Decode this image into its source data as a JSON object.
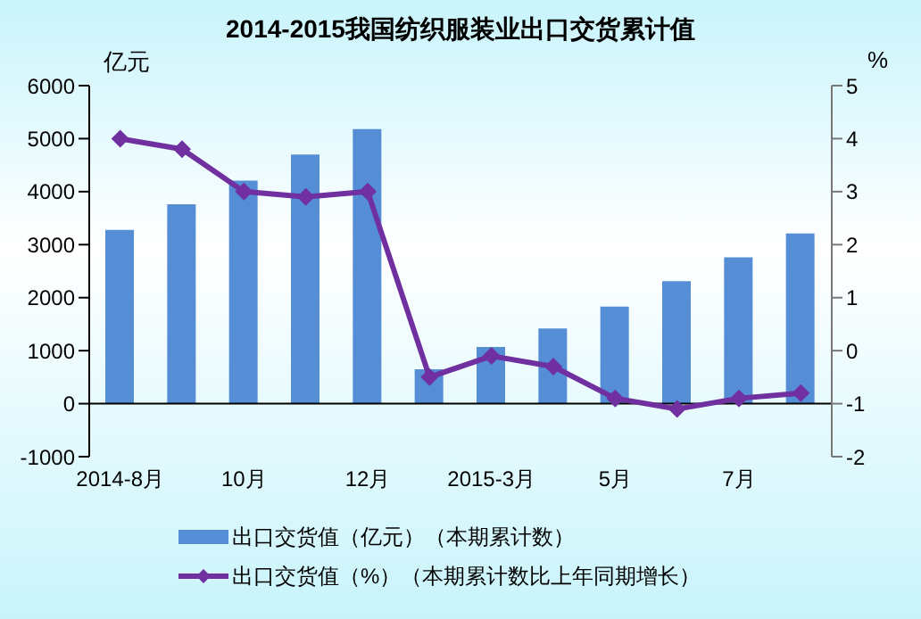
{
  "chart_data": {
    "type": "bar",
    "title": "2014-2015我国纺织服装业出口交货累计值",
    "ylabel": "亿元",
    "y2label": "%",
    "categories": [
      "2014-8月",
      null,
      "10月",
      null,
      "12月",
      null,
      "2015-3月",
      null,
      "5月",
      null,
      "7月",
      null
    ],
    "series": [
      {
        "name": "出口交货值（亿元）（本期累计数）",
        "color": "#558ed5",
        "values": [
          3280,
          3760,
          4210,
          4700,
          5180,
          650,
          1070,
          1420,
          1830,
          2310,
          2760,
          3210
        ]
      },
      {
        "name": "出口交货值（%）（本期累计数比上年同期增长）",
        "type": "line",
        "axis": "y2",
        "color": "#7030a0",
        "marker": "diamond",
        "values": [
          4.0,
          3.8,
          3.0,
          2.9,
          3.0,
          -0.5,
          -0.1,
          -0.3,
          -0.9,
          -1.1,
          -0.9,
          -0.8
        ]
      }
    ],
    "ylim": [
      -1000,
      6000
    ],
    "yticks": [
      -1000,
      0,
      1000,
      2000,
      3000,
      4000,
      5000,
      6000
    ],
    "y2lim": [
      -2,
      5
    ],
    "y2ticks": [
      -2,
      -1,
      0,
      1,
      2,
      3,
      4,
      5
    ],
    "legend": "bottom"
  }
}
